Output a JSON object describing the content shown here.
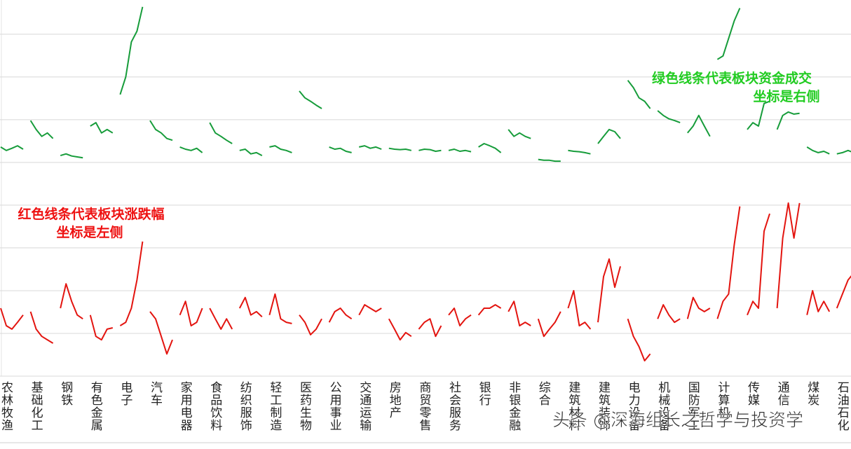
{
  "chart_data": {
    "type": "segment-line",
    "categories": [
      "农林牧渔",
      "基础化工",
      "钢铁",
      "有色金属",
      "电子",
      "汽车",
      "家用电器",
      "食品饮料",
      "纺织服饰",
      "轻工制造",
      "医药生物",
      "公用事业",
      "交通运输",
      "房地产",
      "商贸零售",
      "社会服务",
      "银行",
      "非银金融",
      "综合",
      "建筑材料",
      "建筑装饰",
      "电力设备",
      "机械设备",
      "国防军工",
      "计算机",
      "传媒",
      "通信",
      "煤炭",
      "石油石化"
    ],
    "series": [
      {
        "color": "#e3140f",
        "values": [
          [
            -0.41,
            -0.82,
            -0.9,
            -0.74,
            -0.57
          ],
          [
            -0.49,
            -0.9,
            -1.07,
            -1.15,
            -1.23
          ],
          [
            -0.41,
            0.16,
            -0.25,
            -0.57,
            -0.66
          ],
          [
            -0.57,
            -1.07,
            -1.15,
            -0.9,
            -0.87
          ],
          [
            -0.82,
            -0.74,
            -0.41,
            0.25,
            1.15
          ],
          [
            -0.49,
            -0.66,
            -1.07,
            -1.48,
            -1.15
          ],
          [
            -0.57,
            -0.25,
            -0.82,
            -0.74,
            -0.41
          ],
          [
            -0.41,
            -0.66,
            -0.9,
            -0.66,
            -0.9
          ],
          [
            -0.41,
            -0.16,
            -0.57,
            -0.49,
            -0.61
          ],
          [
            -0.57,
            -0.08,
            -0.66,
            -0.74,
            -0.77
          ],
          [
            -0.57,
            -0.74,
            -1.03,
            -0.9,
            -0.66
          ],
          [
            -0.74,
            -0.49,
            -0.41,
            -0.57,
            -0.66
          ],
          [
            -0.57,
            -0.33,
            -0.41,
            -0.49,
            -0.41
          ],
          [
            -0.66,
            -0.9,
            -1.15,
            -0.98,
            -1.07
          ],
          [
            -0.9,
            -0.74,
            -0.66,
            -1.07,
            -0.82
          ],
          [
            -0.57,
            -0.41,
            -0.82,
            -0.66,
            -0.57
          ],
          [
            -0.57,
            -0.41,
            -0.41,
            -0.33,
            -0.41
          ],
          [
            -0.49,
            -0.25,
            -0.82,
            -0.74,
            -0.82
          ],
          [
            -0.66,
            -1.07,
            -0.9,
            -0.74,
            -0.49
          ],
          [
            -0.41,
            0,
            -0.82,
            -0.74,
            -0.9
          ],
          [
            -0.74,
            0.33,
            0.74,
            0.08,
            0.57
          ],
          [
            -0.66,
            -1.07,
            -1.31,
            -1.64,
            -1.48
          ],
          [
            -0.66,
            -0.33,
            -0.57,
            -0.74,
            -0.66
          ],
          [
            -0.66,
            -0.16,
            -0.41,
            -0.49,
            -0.41
          ],
          [
            -0.66,
            -0.25,
            -0.08,
            1.07,
            1.97
          ],
          [
            -0.57,
            -0.25,
            -0.41,
            1.39,
            1.8
          ],
          [
            -0.41,
            1.23,
            2.05,
            1.23,
            2.05
          ],
          [
            -0.57,
            0,
            -0.49,
            -0.25,
            -0.49
          ],
          [
            -0.41,
            -0.08,
            0.25,
            0.41,
            0.49
          ]
        ]
      },
      {
        "color": "#169c3a",
        "axis": "y2",
        "values": [
          [
            5.36,
            5.28,
            5.33,
            5.39,
            5.31
          ],
          [
            5.98,
            5.77,
            5.61,
            5.69,
            5.56
          ],
          [
            5.16,
            5.2,
            5.15,
            5.13,
            5.11
          ],
          [
            5.85,
            5.93,
            5.69,
            5.77,
            5.69
          ],
          [
            6.59,
            7.0,
            7.82,
            8.07,
            8.64
          ],
          [
            5.98,
            5.77,
            5.69,
            5.56,
            5.52
          ],
          [
            5.36,
            5.31,
            5.28,
            5.33,
            5.23
          ],
          [
            5.93,
            5.69,
            5.61,
            5.52,
            5.44
          ],
          [
            5.28,
            5.31,
            5.2,
            5.23,
            5.16
          ],
          [
            5.36,
            5.39,
            5.31,
            5.28,
            5.23
          ],
          [
            6.67,
            6.51,
            6.43,
            6.34,
            6.26
          ],
          [
            5.36,
            5.31,
            5.33,
            5.26,
            5.23
          ],
          [
            5.36,
            5.39,
            5.33,
            5.36,
            5.31
          ],
          [
            5.33,
            5.31,
            5.3,
            5.31,
            5.28
          ],
          [
            5.28,
            5.31,
            5.3,
            5.26,
            5.28
          ],
          [
            5.28,
            5.31,
            5.26,
            5.28,
            5.25
          ],
          [
            5.36,
            5.44,
            5.39,
            5.33,
            5.23
          ],
          [
            5.77,
            5.61,
            5.69,
            5.61,
            5.56
          ],
          [
            5.07,
            5.05,
            5.05,
            5.03,
            5.03
          ],
          [
            5.28,
            5.26,
            5.25,
            5.23,
            5.2
          ],
          [
            5.44,
            5.61,
            5.77,
            5.72,
            5.56
          ],
          [
            6.92,
            6.75,
            6.51,
            6.43,
            6.26
          ],
          [
            6.21,
            6.1,
            6.02,
            5.98,
            5.93
          ],
          [
            5.69,
            5.85,
            6.1,
            5.85,
            5.61
          ],
          [
            7.41,
            7.49,
            7.9,
            8.31,
            8.61
          ],
          [
            5.77,
            5.93,
            5.85,
            6.38,
            6.43
          ],
          [
            5.77,
            6.1,
            6.18,
            6.13,
            6.15
          ],
          [
            5.36,
            5.28,
            5.23,
            5.26,
            5.2
          ],
          [
            5.2,
            5.23,
            5.28,
            5.23,
            5.23
          ]
        ]
      }
    ],
    "ylim": [
      -2,
      6.8
    ],
    "yticks": [
      -2,
      -1,
      0,
      1,
      2,
      3,
      4,
      5,
      6
    ],
    "y2lim": [
      0,
      8.8
    ],
    "grid": true,
    "annotations": [
      {
        "color": "#22cc22",
        "lines": [
          "绿色线条代表板块资金成交",
          "坐标是右侧"
        ]
      },
      {
        "color": "#ee1111",
        "lines": [
          "红色线条代表板块涨跌幅",
          "坐标是左侧"
        ]
      }
    ]
  },
  "watermark": "头条 @深海组长之哲学与投资学"
}
